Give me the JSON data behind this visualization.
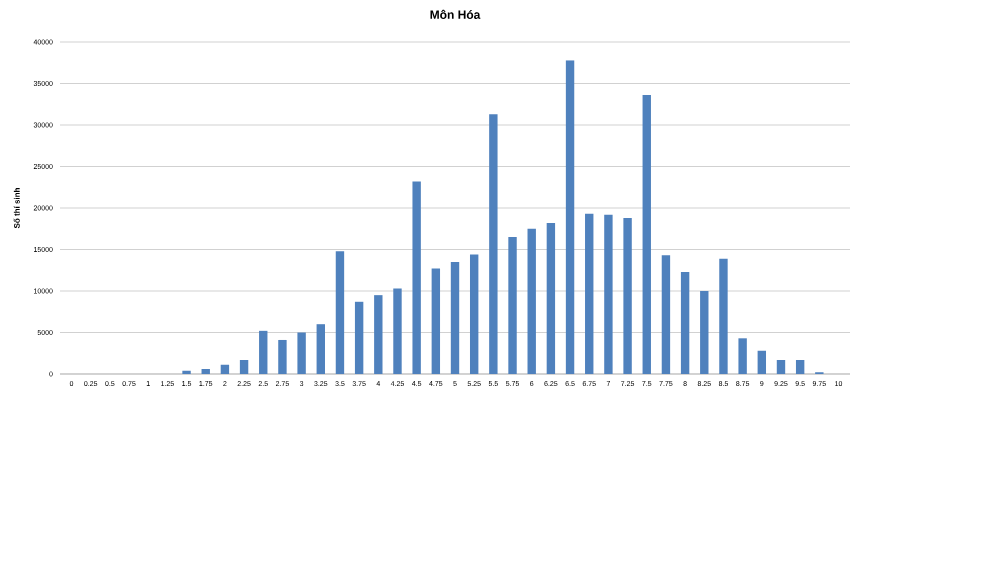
{
  "chart_data": {
    "type": "bar",
    "title": "Môn Hóa",
    "ylabel": "Số thí sinh",
    "categories": [
      "0",
      "0.25",
      "0.5",
      "0.75",
      "1",
      "1.25",
      "1.5",
      "1.75",
      "2",
      "2.25",
      "2.5",
      "2.75",
      "3",
      "3.25",
      "3.5",
      "3.75",
      "4",
      "4.25",
      "4.5",
      "4.75",
      "5",
      "5.25",
      "5.5",
      "5.75",
      "6",
      "6.25",
      "6.5",
      "6.75",
      "7",
      "7.25",
      "7.5",
      "7.75",
      "8",
      "8.25",
      "8.5",
      "8.75",
      "9",
      "9.25",
      "9.5",
      "9.75",
      "10"
    ],
    "values": [
      0,
      0,
      0,
      0,
      0,
      0,
      400,
      600,
      1100,
      1700,
      5200,
      4100,
      5000,
      6000,
      14800,
      8700,
      9500,
      10300,
      23200,
      12700,
      13500,
      14400,
      31300,
      16500,
      17500,
      18200,
      37800,
      19300,
      19200,
      18800,
      33600,
      14300,
      12300,
      10000,
      13900,
      4300,
      2800,
      1700,
      1700,
      200,
      0
    ],
    "color": "#4f81bd",
    "ylim": [
      0,
      40000
    ],
    "yticks": [
      0,
      5000,
      10000,
      15000,
      20000,
      25000,
      30000,
      35000,
      40000
    ],
    "grid": "y"
  }
}
